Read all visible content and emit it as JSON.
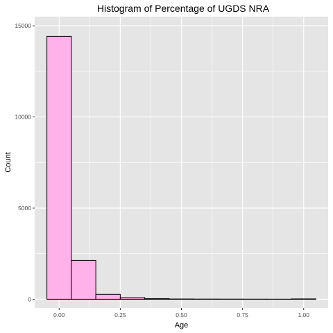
{
  "chart_data": {
    "type": "bar",
    "title": "Histogram of Percentage of UGDS NRA",
    "xlabel": "Age",
    "ylabel": "Count",
    "xlim": [
      -0.1,
      1.1
    ],
    "ylim": [
      -480,
      15500
    ],
    "x_ticks": [
      {
        "value": 0.0,
        "label": "0.00"
      },
      {
        "value": 0.25,
        "label": "0.25"
      },
      {
        "value": 0.5,
        "label": "0.50"
      },
      {
        "value": 0.75,
        "label": "0.75"
      },
      {
        "value": 1.0,
        "label": "1.00"
      }
    ],
    "y_ticks": [
      {
        "value": 0,
        "label": "0"
      },
      {
        "value": 5000,
        "label": "5000"
      },
      {
        "value": 10000,
        "label": "10000"
      },
      {
        "value": 15000,
        "label": "15000"
      }
    ],
    "bins": [
      {
        "x0": -0.05,
        "x1": 0.05,
        "count": 14420
      },
      {
        "x0": 0.05,
        "x1": 0.15,
        "count": 2130
      },
      {
        "x0": 0.15,
        "x1": 0.25,
        "count": 270
      },
      {
        "x0": 0.25,
        "x1": 0.35,
        "count": 90
      },
      {
        "x0": 0.35,
        "x1": 0.45,
        "count": 35
      },
      {
        "x0": 0.45,
        "x1": 0.55,
        "count": 15
      },
      {
        "x0": 0.55,
        "x1": 0.65,
        "count": 10
      },
      {
        "x0": 0.65,
        "x1": 0.75,
        "count": 8
      },
      {
        "x0": 0.75,
        "x1": 0.85,
        "count": 6
      },
      {
        "x0": 0.85,
        "x1": 0.95,
        "count": 5
      },
      {
        "x0": 0.95,
        "x1": 1.05,
        "count": 20
      }
    ],
    "bar_fill": "#ffb1ea",
    "bar_stroke": "#000000",
    "panel_background": "#e5e5e5",
    "grid_color": "#ffffff",
    "grid": true,
    "legend": "none"
  }
}
